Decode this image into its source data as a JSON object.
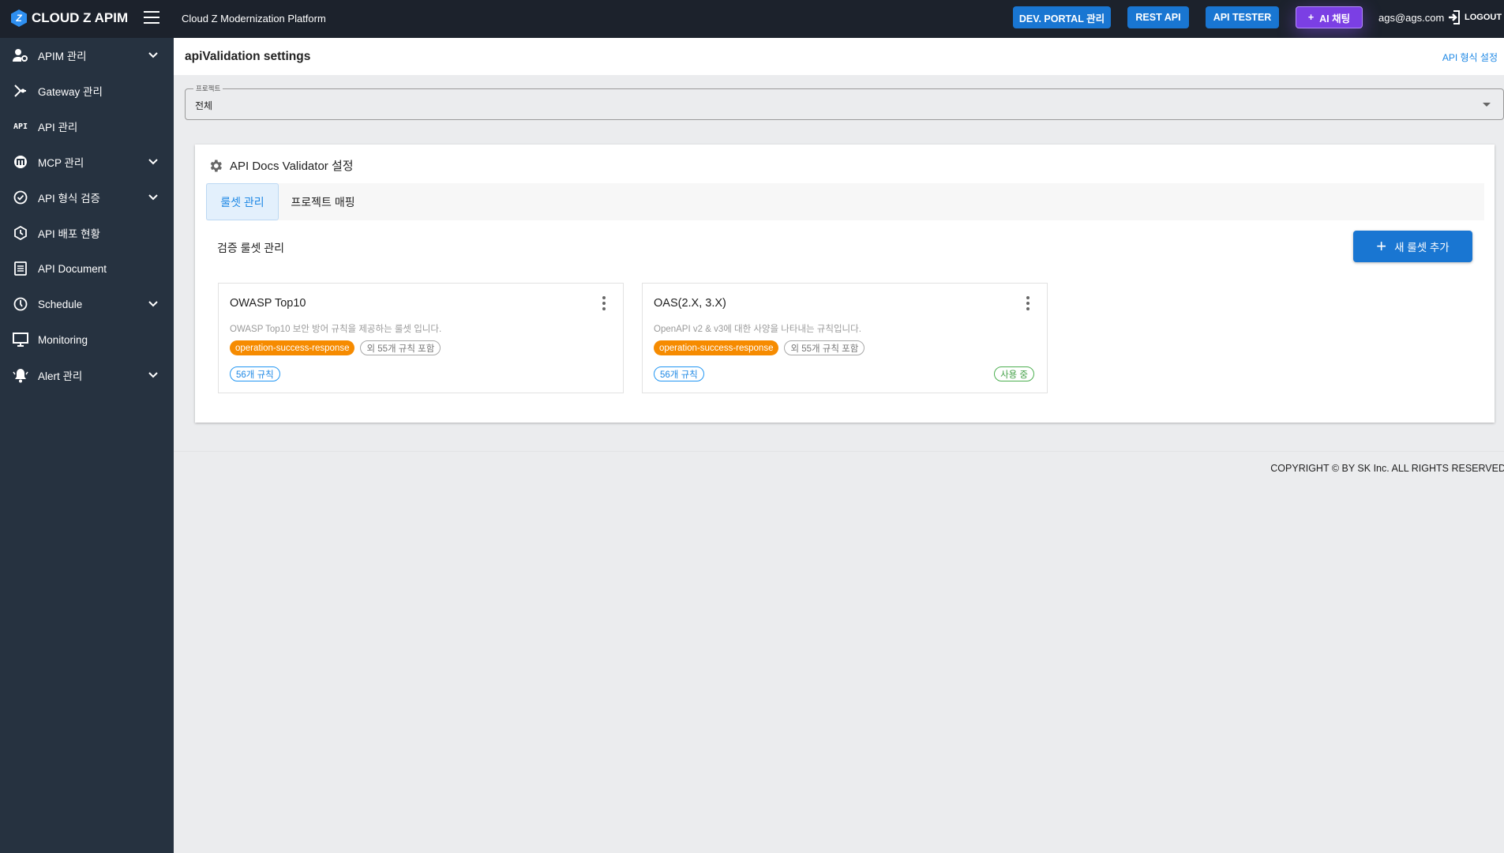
{
  "header": {
    "logo": "CLOUD Z APIM",
    "logo_mark": "Z",
    "platform": "Cloud Z Modernization Platform",
    "buttons": {
      "dev_portal": "DEV. PORTAL 관리",
      "rest_api": "REST API",
      "api_tester": "API TESTER",
      "ai_chat": "AI 채팅"
    },
    "user": "ags@ags.com",
    "logout": "LOGOUT"
  },
  "sidebar": {
    "items": [
      {
        "label": "APIM 관리",
        "icon": "user-gear-icon",
        "expandable": true
      },
      {
        "label": "Gateway 관리",
        "icon": "gateway-icon",
        "expandable": false
      },
      {
        "label": "API 관리",
        "icon": "api-icon",
        "icon_text": "API",
        "expandable": false
      },
      {
        "label": "MCP 관리",
        "icon": "mcp-icon",
        "expandable": true
      },
      {
        "label": "API 형식 검증",
        "icon": "check-circle-icon",
        "expandable": true
      },
      {
        "label": "API 배포 현황",
        "icon": "deploy-icon",
        "expandable": false
      },
      {
        "label": "API Document",
        "icon": "document-icon",
        "expandable": false
      },
      {
        "label": "Schedule",
        "icon": "clock-icon",
        "expandable": true
      },
      {
        "label": "Monitoring",
        "icon": "monitor-icon",
        "expandable": false
      },
      {
        "label": "Alert 관리",
        "icon": "bell-icon",
        "expandable": true
      }
    ]
  },
  "page": {
    "title": "apiValidation settings",
    "link": "API 형식 설정"
  },
  "project_select": {
    "label": "프로젝트",
    "value": "전체"
  },
  "panel": {
    "title": "API Docs Validator 설정",
    "tabs": [
      {
        "label": "룰셋 관리",
        "active": true
      },
      {
        "label": "프로젝트 매핑",
        "active": false
      }
    ],
    "section_title": "검증 룰셋 관리",
    "new_button": "새 룰셋 추가",
    "cards": [
      {
        "name": "OWASP Top10",
        "description": "OWASP Top10 보안 방어 규칙을 제공하는 룰셋 입니다.",
        "rule_chip": "operation-success-response",
        "more_chip": "외 55개 규칙 포함",
        "count": "56개 규칙",
        "status": ""
      },
      {
        "name": "OAS(2.X, 3.X)",
        "description": "OpenAPI v2 & v3에 대한 사양을 나타내는 규칙입니다.",
        "rule_chip": "operation-success-response",
        "more_chip": "외 55개 규칙 포함",
        "count": "56개 규칙",
        "status": "사용 중"
      }
    ]
  },
  "footer": {
    "copyright": "COPYRIGHT © BY SK Inc. ALL RIGHTS RESERVED"
  },
  "colors": {
    "header": "#1c222c",
    "sidebar": "#263240",
    "primary": "#1976d2",
    "ai": "#7b3fe4",
    "orange": "#f68b00",
    "green": "#43a047"
  }
}
